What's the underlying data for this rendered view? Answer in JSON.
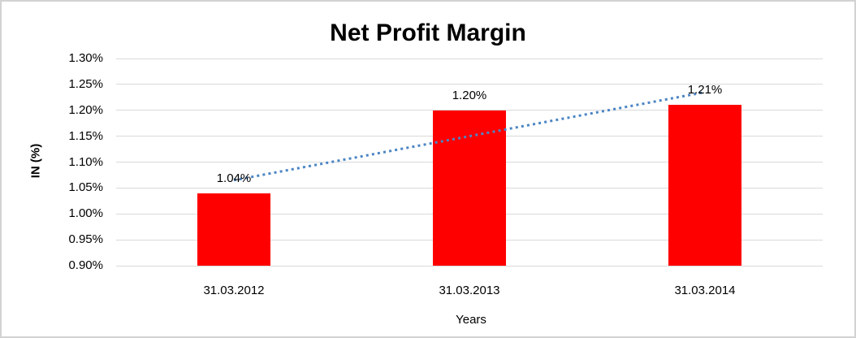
{
  "frame": {
    "background_color": "#ffffff",
    "border_color": "#d2d2d2"
  },
  "chart_data": {
    "type": "bar",
    "title": "Net Profit Margin",
    "xlabel": "Years",
    "ylabel": "IN (%)",
    "categories": [
      "31.03.2012",
      "31.03.2013",
      "31.03.2014"
    ],
    "series": [
      {
        "name": "Net Profit Margin",
        "values": [
          1.04,
          1.2,
          1.21
        ]
      }
    ],
    "data_labels": [
      "1.04%",
      "1.20%",
      "1.21%"
    ],
    "y_ticks": [
      "1.30%",
      "1.25%",
      "1.20%",
      "1.15%",
      "1.10%",
      "1.05%",
      "1.00%",
      "0.95%",
      "0.90%"
    ],
    "y_tick_values": [
      1.3,
      1.25,
      1.2,
      1.15,
      1.1,
      1.05,
      1.0,
      0.95,
      0.9
    ],
    "ylim": [
      0.9,
      1.3
    ],
    "grid": true,
    "legend_position": "none",
    "bar_color": "#ff0000",
    "gridline_color": "#d9d9d9",
    "trendline": {
      "type": "linear",
      "line_style": "dotted",
      "color": "#4b85c4",
      "start_value": 1.065,
      "end_value": 1.235
    }
  }
}
